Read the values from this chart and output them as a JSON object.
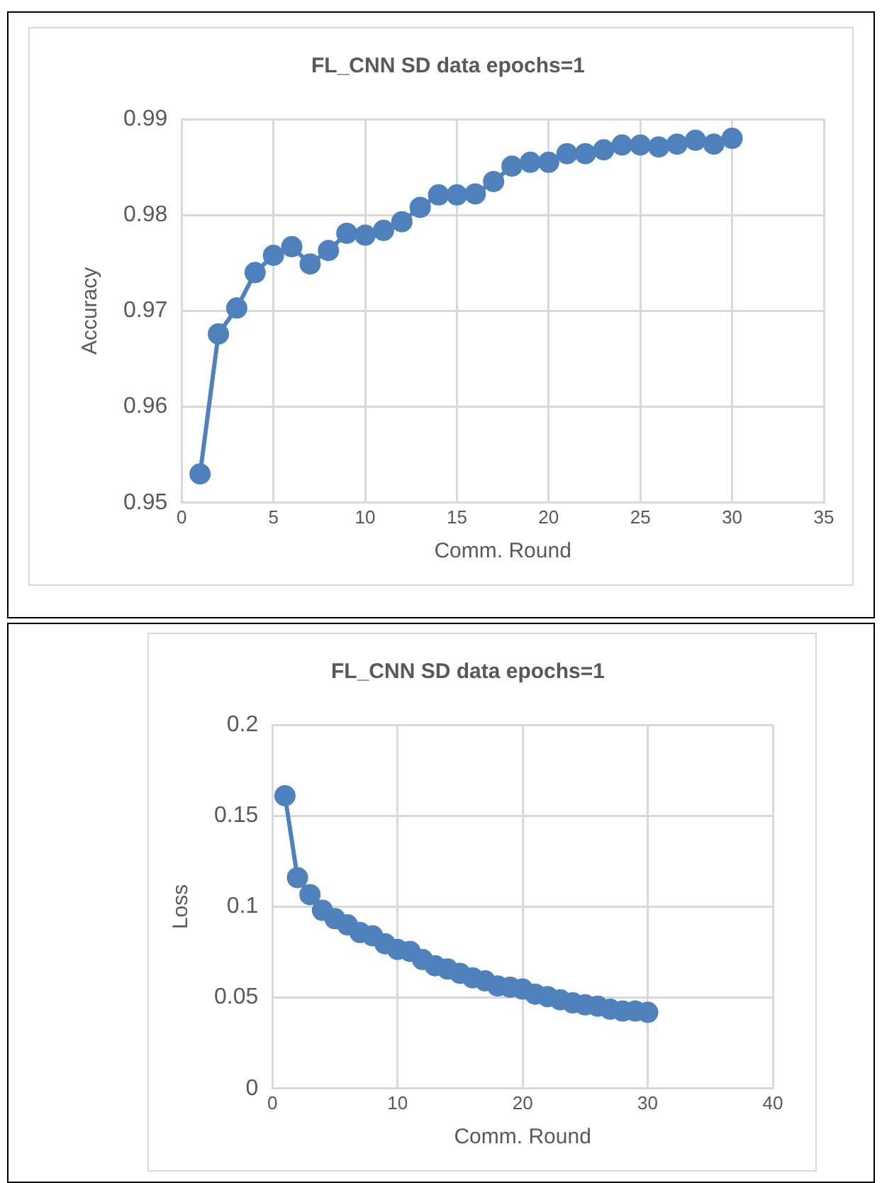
{
  "chart_data": [
    {
      "type": "line",
      "title": "FL_CNN SD data epochs=1",
      "xlabel": "Comm. Round",
      "ylabel": "Accuracy",
      "x": [
        1,
        2,
        3,
        4,
        5,
        6,
        7,
        8,
        9,
        10,
        11,
        12,
        13,
        14,
        15,
        16,
        17,
        18,
        19,
        20,
        21,
        22,
        23,
        24,
        25,
        26,
        27,
        28,
        29,
        30
      ],
      "series": [
        {
          "color": "#4f81bd",
          "values": [
            0.953,
            0.9676,
            0.9703,
            0.974,
            0.9758,
            0.9767,
            0.9749,
            0.9763,
            0.9781,
            0.9779,
            0.9784,
            0.9793,
            0.9808,
            0.9821,
            0.9821,
            0.9822,
            0.9835,
            0.9851,
            0.9855,
            0.9855,
            0.9864,
            0.9864,
            0.9868,
            0.9873,
            0.9873,
            0.9871,
            0.9874,
            0.9878,
            0.9874,
            0.988
          ]
        }
      ],
      "xlim": [
        0,
        35
      ],
      "xticks": [
        0,
        5,
        10,
        15,
        20,
        25,
        30,
        35
      ],
      "ylim": [
        0.95,
        0.99
      ],
      "yticks": [
        0.95,
        0.96,
        0.97,
        0.98,
        0.99
      ],
      "grid": true,
      "legend": false,
      "marker": "circle",
      "line_style": "solid"
    },
    {
      "type": "line",
      "title": "FL_CNN SD data epochs=1",
      "xlabel": "Comm. Round",
      "ylabel": "Loss",
      "x": [
        1,
        2,
        3,
        4,
        5,
        6,
        7,
        8,
        9,
        10,
        11,
        12,
        13,
        14,
        15,
        16,
        17,
        18,
        19,
        20,
        21,
        22,
        23,
        24,
        25,
        26,
        27,
        28,
        29,
        30
      ],
      "series": [
        {
          "color": "#4f81bd",
          "values": [
            0.161,
            0.116,
            0.1066,
            0.098,
            0.0934,
            0.09,
            0.0858,
            0.084,
            0.0796,
            0.0765,
            0.0754,
            0.0709,
            0.0675,
            0.0657,
            0.0633,
            0.0609,
            0.0592,
            0.0564,
            0.0557,
            0.0547,
            0.0519,
            0.0505,
            0.0488,
            0.0471,
            0.046,
            0.0453,
            0.0436,
            0.0426,
            0.0426,
            0.0419
          ]
        }
      ],
      "xlim": [
        0,
        40
      ],
      "xticks": [
        0,
        10,
        20,
        30,
        40
      ],
      "ylim": [
        0,
        0.2
      ],
      "yticks": [
        0,
        0.05,
        0.1,
        0.15,
        0.2
      ],
      "grid": true,
      "legend": false,
      "marker": "circle",
      "line_style": "solid"
    }
  ]
}
